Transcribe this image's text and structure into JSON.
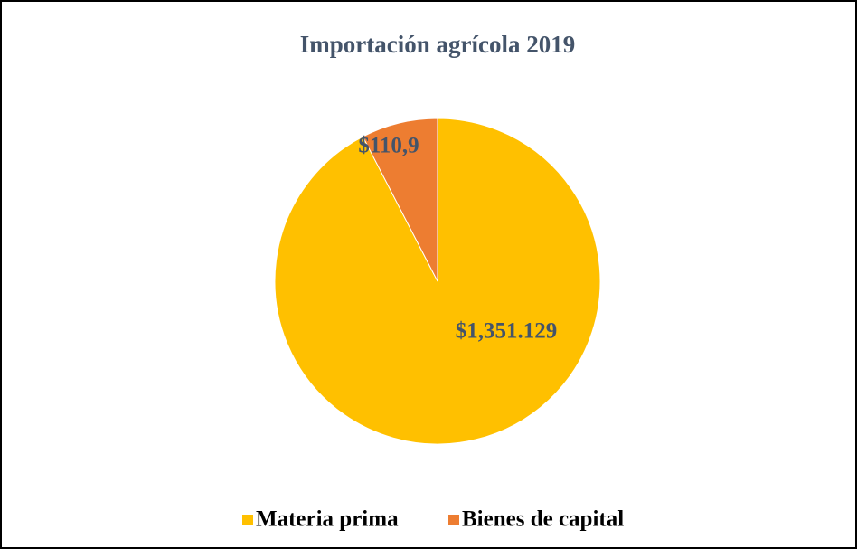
{
  "chart_data": {
    "type": "pie",
    "title": "Importación agrícola 2019",
    "categories": [
      "Materia prima",
      "Bienes de capital"
    ],
    "values": [
      1351.129,
      110.9
    ],
    "value_labels": [
      "$1,351.129",
      "$110,9"
    ],
    "colors": [
      "#FFC000",
      "#ED7D31"
    ],
    "legend": "bottom"
  }
}
